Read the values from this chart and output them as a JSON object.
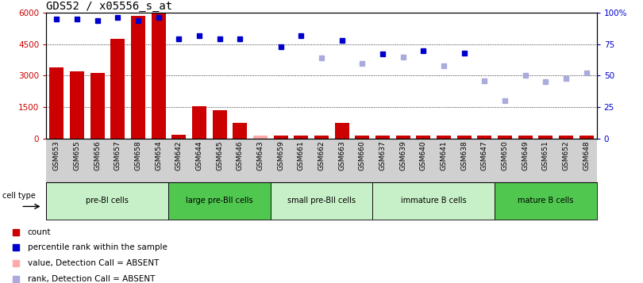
{
  "title": "GDS52 / x05556_s_at",
  "samples": [
    "GSM653",
    "GSM655",
    "GSM656",
    "GSM657",
    "GSM658",
    "GSM654",
    "GSM642",
    "GSM644",
    "GSM645",
    "GSM646",
    "GSM643",
    "GSM659",
    "GSM661",
    "GSM662",
    "GSM663",
    "GSM660",
    "GSM637",
    "GSM639",
    "GSM640",
    "GSM641",
    "GSM638",
    "GSM647",
    "GSM650",
    "GSM649",
    "GSM651",
    "GSM652",
    "GSM648"
  ],
  "count_values": [
    3400,
    3200,
    3150,
    4750,
    5850,
    6000,
    200,
    1550,
    1350,
    750,
    150,
    150,
    150,
    150,
    750,
    150,
    150,
    150,
    150,
    150,
    150,
    150,
    150,
    150,
    150,
    150,
    150
  ],
  "count_absent": [
    false,
    false,
    false,
    false,
    false,
    false,
    false,
    false,
    false,
    false,
    true,
    false,
    false,
    false,
    false,
    false,
    false,
    false,
    false,
    false,
    false,
    false,
    false,
    false,
    false,
    false,
    false
  ],
  "percentile_rank": [
    95,
    95,
    94,
    96,
    94,
    96,
    79,
    82,
    79,
    79,
    null,
    73,
    82,
    null,
    78,
    null,
    67,
    null,
    70,
    null,
    68,
    null,
    null,
    null,
    null,
    null,
    null
  ],
  "rank_absent_values": [
    null,
    null,
    null,
    null,
    null,
    null,
    null,
    null,
    null,
    null,
    null,
    null,
    null,
    64,
    null,
    60,
    null,
    65,
    null,
    58,
    null,
    46,
    30,
    50,
    45,
    48,
    52
  ],
  "cell_types": [
    {
      "label": "pre-BI cells",
      "start": 0,
      "end": 5,
      "color": "#c8f0c8"
    },
    {
      "label": "large pre-BII cells",
      "start": 6,
      "end": 10,
      "color": "#50c850"
    },
    {
      "label": "small pre-BII cells",
      "start": 11,
      "end": 15,
      "color": "#c8f0c8"
    },
    {
      "label": "immature B cells",
      "start": 16,
      "end": 21,
      "color": "#c8f0c8"
    },
    {
      "label": "mature B cells",
      "start": 22,
      "end": 26,
      "color": "#50c850"
    }
  ],
  "ylim_left": [
    0,
    6000
  ],
  "ylim_right": [
    0,
    100
  ],
  "yticks_left": [
    0,
    1500,
    3000,
    4500,
    6000
  ],
  "ytick_labels_left": [
    "0",
    "1500",
    "3000",
    "4500",
    "6000"
  ],
  "yticks_right": [
    0,
    25,
    50,
    75,
    100
  ],
  "ytick_labels_right": [
    "0",
    "25",
    "50",
    "75",
    "100%"
  ],
  "bar_color_present": "#cc0000",
  "bar_color_absent": "#ffaaaa",
  "dot_color_present": "#0000cc",
  "dot_color_absent": "#aaaadd",
  "xticklabel_bg": "#d0d0d0",
  "title_fontsize": 10,
  "tick_fontsize": 7.5
}
